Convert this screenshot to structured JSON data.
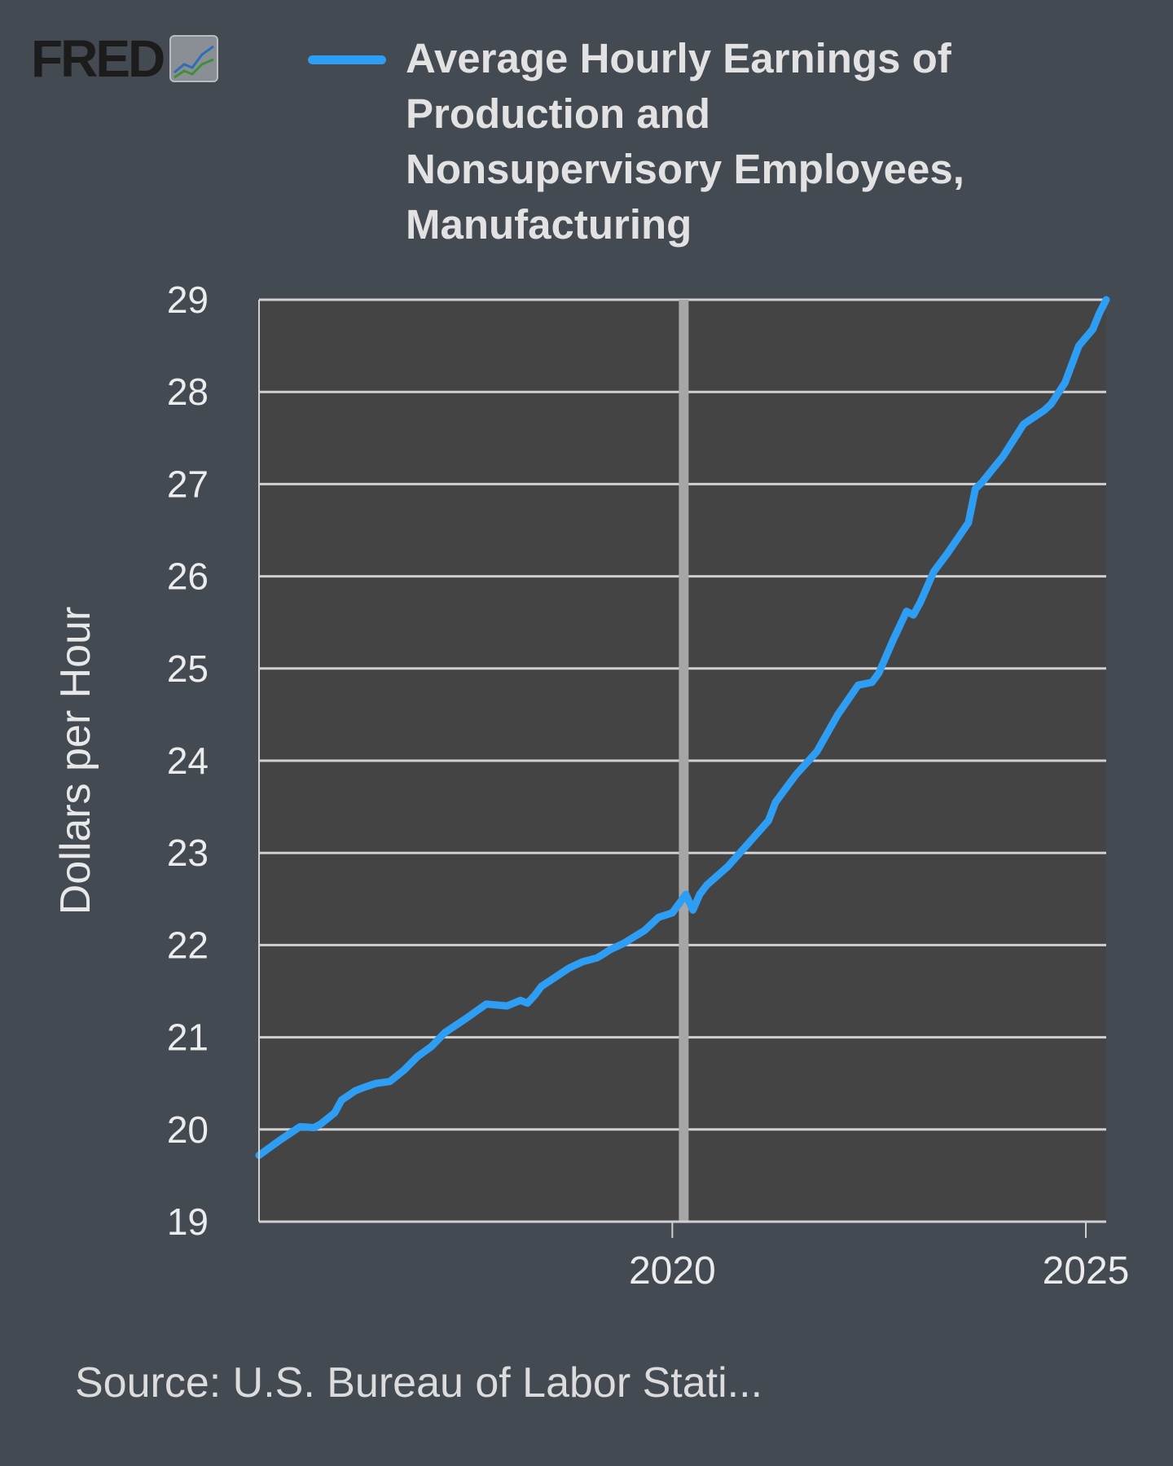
{
  "brand": {
    "name": "FRED",
    "logo_icon": "line-chart-icon"
  },
  "legend": {
    "label": "Average Hourly Earnings of Production and Nonsupervisory Employees, Manufacturing"
  },
  "source": "Source: U.S. Bureau of Labor Stati...",
  "colors": {
    "background": "#444a52",
    "plot_background": "#444444",
    "series": "#2e9df4",
    "grid": "#d0d0d0",
    "text": "#e6e6e6"
  },
  "chart_data": {
    "type": "line",
    "title": "",
    "xlabel": "",
    "ylabel": "Dollars per Hour",
    "ylim": [
      19,
      29
    ],
    "xlim": [
      "2015-01-01",
      "2025-04-01"
    ],
    "y_ticks": [
      "19",
      "20",
      "21",
      "22",
      "23",
      "24",
      "25",
      "26",
      "27",
      "28",
      "29"
    ],
    "x_ticks": [
      {
        "date": "2020-01-01",
        "label": "2020"
      },
      {
        "date": "2025-01-01",
        "label": "2025"
      }
    ],
    "grid": true,
    "legend_position": "top",
    "series": [
      {
        "name": "Average Hourly Earnings of Production and Nonsupervisory Employees, Manufacturing",
        "x": [
          "2015-01-01",
          "2015-04-01",
          "2015-07-01",
          "2015-09-01",
          "2015-10-01",
          "2015-12-01",
          "2016-01-01",
          "2016-03-01",
          "2016-04-01",
          "2016-06-01",
          "2016-08-01",
          "2016-10-01",
          "2016-12-01",
          "2017-02-01",
          "2017-04-01",
          "2017-07-01",
          "2017-10-01",
          "2018-01-01",
          "2018-03-01",
          "2018-04-01",
          "2018-05-01",
          "2018-06-01",
          "2018-08-01",
          "2018-10-01",
          "2018-12-01",
          "2019-02-01",
          "2019-03-01",
          "2019-04-01",
          "2019-06-01",
          "2019-09-01",
          "2019-11-01",
          "2020-01-01",
          "2020-03-01",
          "2020-04-01",
          "2020-05-01",
          "2020-06-01",
          "2020-09-01",
          "2020-12-01",
          "2021-03-01",
          "2021-04-01",
          "2021-07-01",
          "2021-10-01",
          "2022-01-01",
          "2022-04-01",
          "2022-06-01",
          "2022-07-01",
          "2022-09-01",
          "2022-11-01",
          "2022-12-01",
          "2023-01-01",
          "2023-03-01",
          "2023-05-01",
          "2023-08-01",
          "2023-09-01",
          "2023-10-01",
          "2024-01-01",
          "2024-04-01",
          "2024-07-01",
          "2024-08-01",
          "2024-10-01",
          "2024-12-01",
          "2025-02-01",
          "2025-03-01",
          "2025-04-01"
        ],
        "values": [
          19.72,
          19.88,
          20.03,
          20.02,
          20.06,
          20.18,
          20.32,
          20.42,
          20.45,
          20.5,
          20.52,
          20.64,
          20.79,
          20.9,
          21.05,
          21.2,
          21.36,
          21.34,
          21.4,
          21.37,
          21.45,
          21.55,
          21.65,
          21.75,
          21.82,
          21.86,
          21.9,
          21.95,
          22.02,
          22.16,
          22.3,
          22.35,
          22.55,
          22.38,
          22.55,
          22.65,
          22.85,
          23.1,
          23.35,
          23.55,
          23.85,
          24.1,
          24.5,
          24.82,
          24.85,
          24.95,
          25.3,
          25.62,
          25.58,
          25.72,
          26.05,
          26.25,
          26.58,
          26.95,
          27.02,
          27.3,
          27.65,
          27.8,
          27.87,
          28.1,
          28.5,
          28.68,
          28.85,
          29.0
        ]
      }
    ]
  }
}
